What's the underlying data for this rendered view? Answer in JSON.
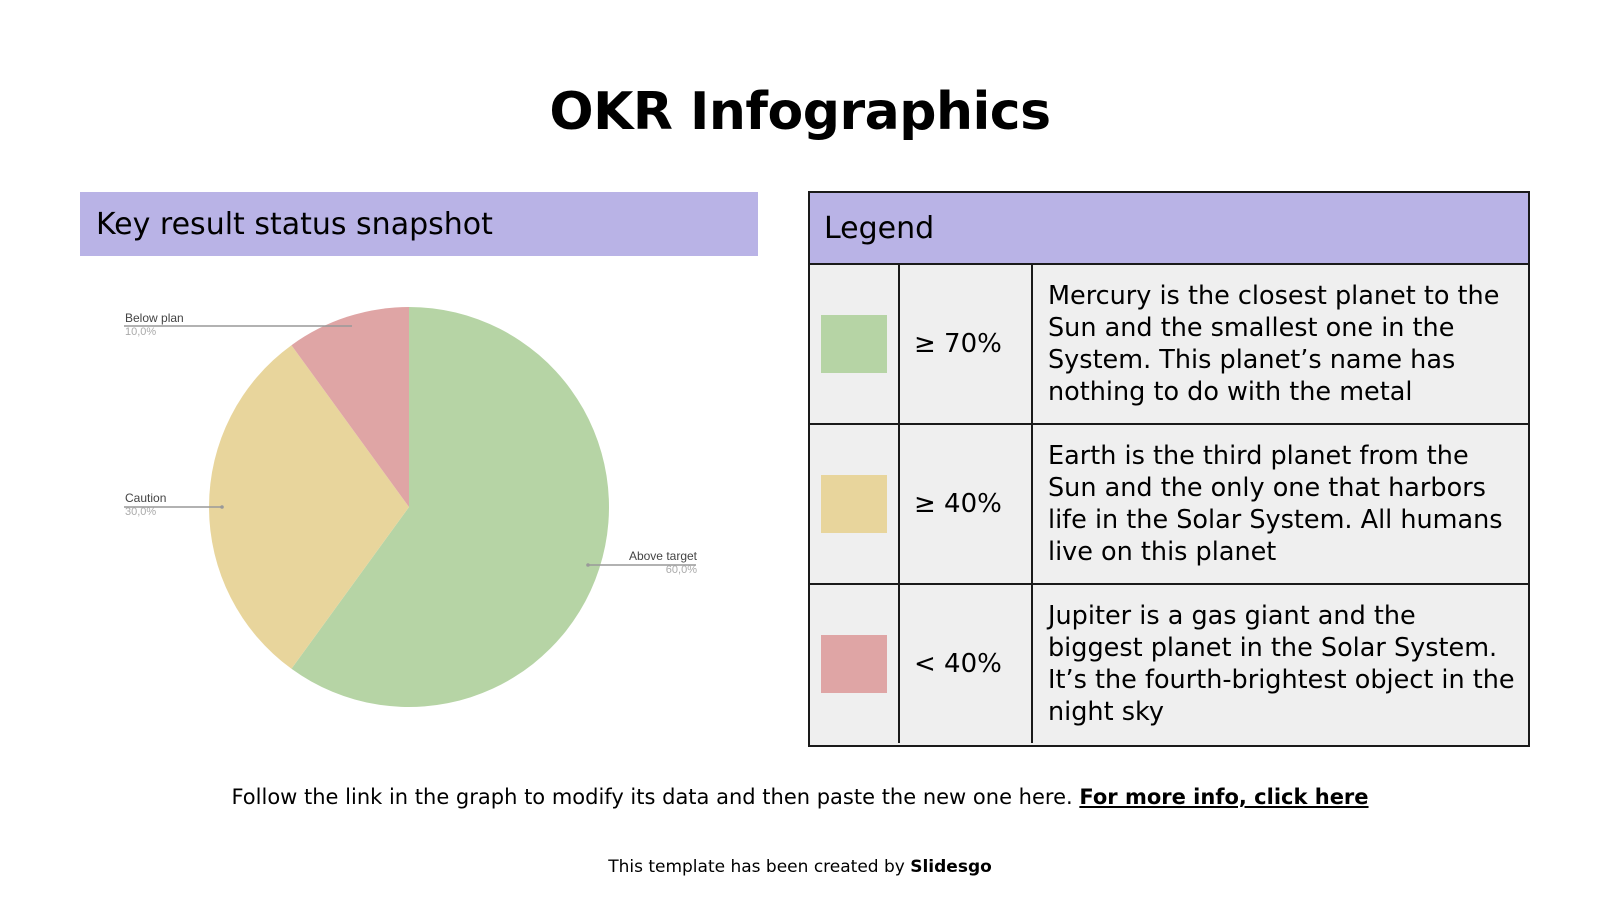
{
  "slide": {
    "title": "OKR Infographics"
  },
  "chart_panel": {
    "header": "Key result status snapshot"
  },
  "legend": {
    "header": "Legend",
    "rows": [
      {
        "color": "#b6d4a5",
        "threshold": "≥ 70%",
        "description": "Mercury is the closest planet to the Sun and the smallest one in the System. This planet’s name has nothing to do with the metal"
      },
      {
        "color": "#e8d59c",
        "threshold": "≥ 40%",
        "description": "Earth is the third planet from the Sun and the only one that harbors life in the Solar System. All humans live on this planet"
      },
      {
        "color": "#dfa5a5",
        "threshold": "< 40%",
        "description": "Jupiter is a gas giant and the biggest planet in the Solar System. It’s the fourth-brightest object in the night sky"
      }
    ]
  },
  "footer": {
    "note": "Follow the link in the graph to modify its data and then paste the new one here.",
    "link": "For more info, click here",
    "credit_prefix": "This template has been created by",
    "credit_brand": "Slidesgo"
  },
  "chart_data": {
    "type": "pie",
    "title": "Key result status snapshot",
    "categories": [
      "Above target",
      "Caution",
      "Below plan"
    ],
    "values": [
      60.0,
      30.0,
      10.0
    ],
    "value_labels": [
      "60,0%",
      "30,0%",
      "10,0%"
    ],
    "colors": [
      "#b6d4a5",
      "#e8d59c",
      "#dfa5a5"
    ],
    "start_angle": "12 o'clock, clockwise",
    "legend_position": "callouts with leader lines"
  }
}
